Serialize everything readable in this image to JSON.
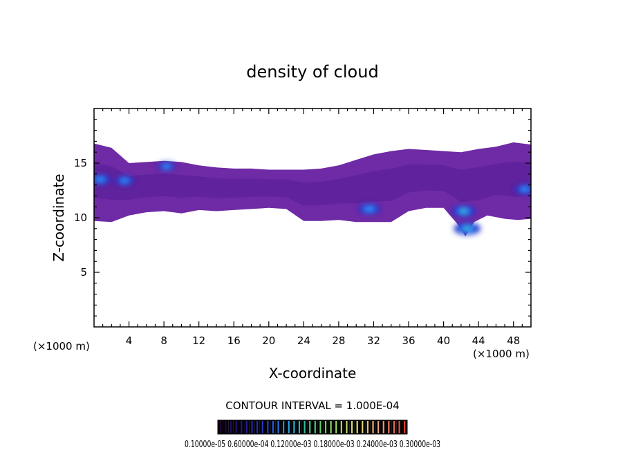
{
  "chart_data": {
    "type": "heatmap",
    "title": "density of cloud",
    "xlabel": "X-coordinate",
    "ylabel": "Z-coordinate",
    "x_unit_left": "(×1000 m)",
    "x_unit_right": "(×1000 m)",
    "xlim": [
      0,
      50
    ],
    "ylim": [
      0,
      20
    ],
    "x_ticks": [
      4,
      8,
      12,
      16,
      20,
      24,
      28,
      32,
      36,
      40,
      44,
      48
    ],
    "y_ticks": [
      5,
      10,
      15
    ],
    "contour_interval_text": "CONTOUR INTERVAL = 1.000E-04",
    "colorbar_labels_text": "0.10000e-05 0.60000e-04 0.12000e-03 0.18000e-03 0.24000e-03 0.30000e-03",
    "colorbar_levels": 36,
    "colorbar_range": [
      1e-06,
      0.0003
    ],
    "cloud_layer": {
      "bottom_profile": [
        [
          0,
          9.7
        ],
        [
          2,
          9.6
        ],
        [
          4,
          10.2
        ],
        [
          6,
          10.5
        ],
        [
          8,
          10.6
        ],
        [
          10,
          10.4
        ],
        [
          12,
          10.7
        ],
        [
          14,
          10.6
        ],
        [
          16,
          10.7
        ],
        [
          18,
          10.8
        ],
        [
          20,
          10.9
        ],
        [
          22,
          10.8
        ],
        [
          24,
          9.7
        ],
        [
          26,
          9.7
        ],
        [
          28,
          9.8
        ],
        [
          30,
          9.6
        ],
        [
          32,
          9.6
        ],
        [
          34,
          9.6
        ],
        [
          36,
          10.6
        ],
        [
          38,
          10.9
        ],
        [
          40,
          10.9
        ],
        [
          41.5,
          9.5
        ],
        [
          42.5,
          8.3
        ],
        [
          43.5,
          9.6
        ],
        [
          45,
          10.2
        ],
        [
          47,
          9.9
        ],
        [
          48.5,
          9.8
        ],
        [
          50,
          9.9
        ]
      ],
      "top_profile": [
        [
          0,
          16.8
        ],
        [
          2,
          16.4
        ],
        [
          4,
          15.0
        ],
        [
          6,
          15.1
        ],
        [
          8,
          15.2
        ],
        [
          10,
          15.1
        ],
        [
          12,
          14.8
        ],
        [
          14,
          14.6
        ],
        [
          16,
          14.5
        ],
        [
          18,
          14.5
        ],
        [
          20,
          14.4
        ],
        [
          22,
          14.4
        ],
        [
          24,
          14.4
        ],
        [
          26,
          14.5
        ],
        [
          28,
          14.8
        ],
        [
          30,
          15.3
        ],
        [
          32,
          15.8
        ],
        [
          34,
          16.1
        ],
        [
          36,
          16.3
        ],
        [
          38,
          16.2
        ],
        [
          40,
          16.1
        ],
        [
          42,
          16.0
        ],
        [
          44,
          16.3
        ],
        [
          46,
          16.5
        ],
        [
          48,
          16.9
        ],
        [
          50,
          16.7
        ]
      ]
    },
    "high_density_regions": [
      {
        "x": 0.7,
        "z": 13.5,
        "value": 0.00011
      },
      {
        "x": 3.5,
        "z": 13.4,
        "value": 8e-05
      },
      {
        "x": 8.3,
        "z": 14.7,
        "value": 6e-05
      },
      {
        "x": 31.5,
        "z": 10.8,
        "value": 0.00013
      },
      {
        "x": 42.3,
        "z": 10.6,
        "value": 0.00016
      },
      {
        "x": 42.7,
        "z": 9.0,
        "value": 0.0002
      },
      {
        "x": 49.3,
        "z": 12.6,
        "value": 0.0001
      }
    ]
  }
}
